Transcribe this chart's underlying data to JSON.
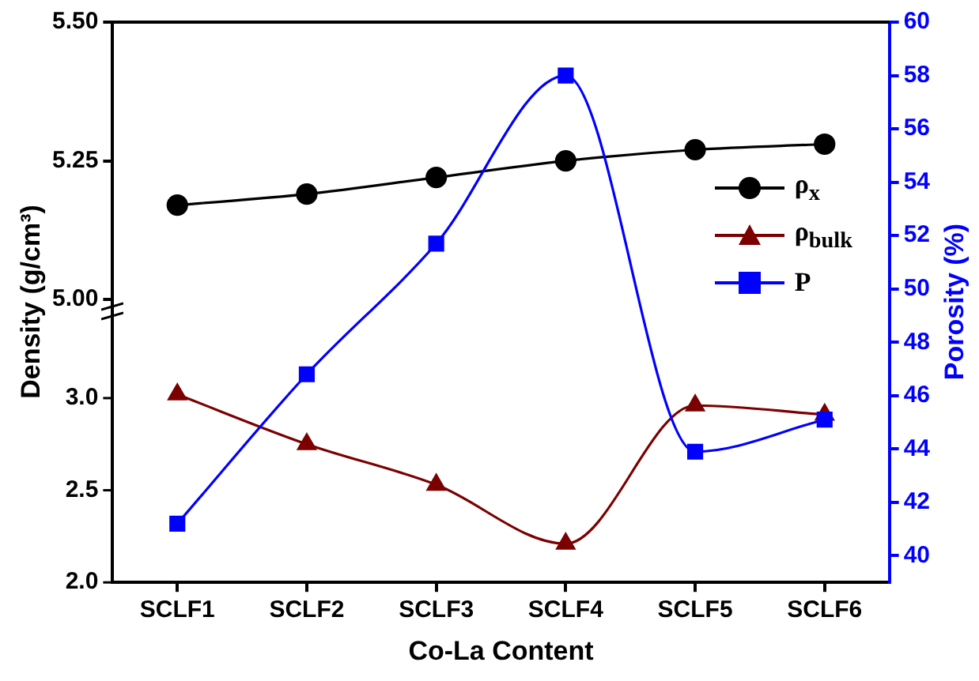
{
  "chart_data": {
    "type": "line",
    "xlabel": "Co-La Content",
    "ylabel": "Density (g/cm³)",
    "y2label": "Porosity (%)",
    "categories": [
      "SCLF1",
      "SCLF2",
      "SCLF3",
      "SCLF4",
      "SCLF5",
      "SCLF6"
    ],
    "series": [
      {
        "name": "ρ$_{x}$",
        "color": "#000000",
        "marker": "circle",
        "axis": "y3",
        "values": [
          5.17,
          5.19,
          5.22,
          5.25,
          5.27,
          5.28
        ]
      },
      {
        "name": "ρ$_{bulk}$",
        "color": "#7b0000",
        "marker": "triangle",
        "axis": "y",
        "values": [
          3.02,
          2.75,
          2.53,
          2.21,
          2.96,
          2.91
        ]
      },
      {
        "name": "P",
        "color": "#0000ff",
        "marker": "square",
        "axis": "y2",
        "values": [
          41.2,
          46.8,
          51.7,
          58.0,
          43.9,
          45.1
        ]
      }
    ],
    "ylim": [
      2.0,
      5.04
    ],
    "yticks": [
      {
        "value": 2,
        "label": "2.0"
      },
      2.5,
      {
        "value": 3,
        "label": "3.0"
      }
    ],
    "y3lim": [
      4.49,
      5.5
    ],
    "y3ticks": [
      {
        "value": 5,
        "label": "5.00"
      },
      5.25,
      {
        "value": 5.5,
        "label": "5.50"
      }
    ],
    "y2lim": [
      39,
      60
    ],
    "y2ticks": [
      40,
      42,
      44,
      46,
      48,
      50,
      52,
      54,
      56,
      58,
      60
    ],
    "grid": false,
    "legend": "right",
    "line_style": "solid"
  }
}
